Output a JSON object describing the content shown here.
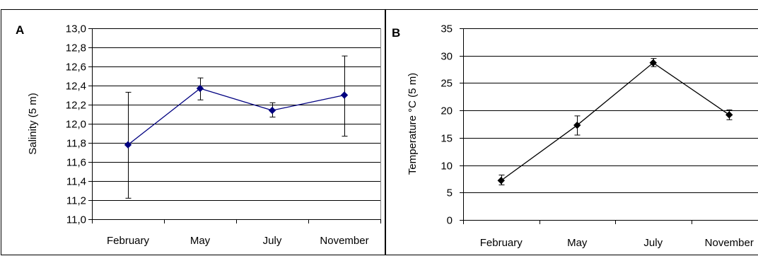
{
  "chart_data": [
    {
      "type": "line",
      "panel_label": "A",
      "categories": [
        "February",
        "May",
        "July",
        "November"
      ],
      "values": [
        11.78,
        12.37,
        12.14,
        12.3
      ],
      "error_low": [
        11.22,
        12.25,
        12.07,
        11.87
      ],
      "error_high": [
        12.33,
        12.48,
        12.22,
        12.71
      ],
      "ylabel": "Salinity (5 m)",
      "xlabel": "",
      "ylim": [
        11.0,
        13.0
      ],
      "ytick_step": 0.2,
      "ytick_labels": [
        "11,0",
        "11,2",
        "11,4",
        "11,6",
        "11,8",
        "12,0",
        "12,2",
        "12,4",
        "12,6",
        "12,8",
        "13,0"
      ],
      "grid": true,
      "line_color": "#000080",
      "marker": "diamond"
    },
    {
      "type": "line",
      "panel_label": "B",
      "categories": [
        "February",
        "May",
        "July",
        "November"
      ],
      "values": [
        7.2,
        17.3,
        28.7,
        19.2
      ],
      "error_low": [
        6.4,
        15.5,
        28.0,
        18.3
      ],
      "error_high": [
        8.2,
        19.0,
        29.5,
        20.1
      ],
      "ylabel": "Temperature °C (5 m)",
      "xlabel": "",
      "ylim": [
        0,
        35
      ],
      "ytick_step": 5,
      "ytick_labels": [
        "0",
        "5",
        "10",
        "15",
        "20",
        "25",
        "30",
        "35"
      ],
      "grid": true,
      "line_color": "#000000",
      "marker": "diamond"
    }
  ]
}
